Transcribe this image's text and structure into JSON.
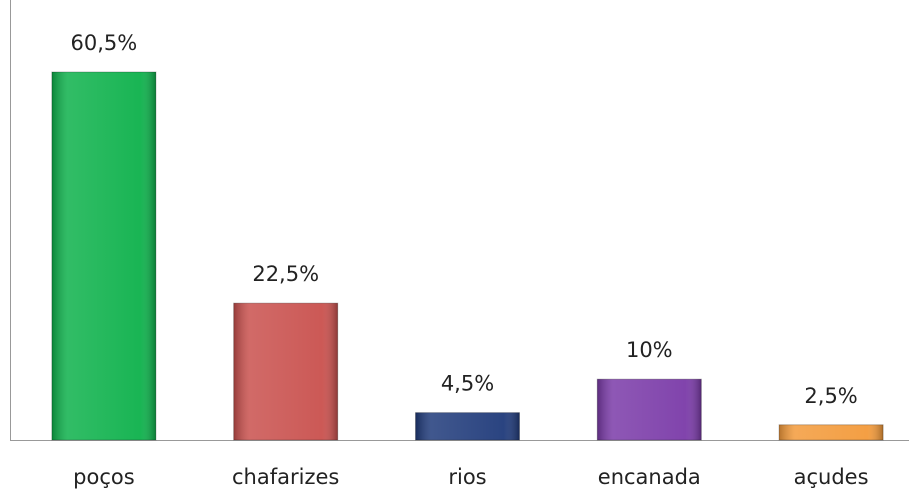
{
  "chart_data": {
    "type": "bar",
    "categories": [
      "poços",
      "chafarizes",
      "rios",
      "encanada",
      "açudes"
    ],
    "values": [
      60.5,
      22.5,
      4.5,
      10,
      2.5
    ],
    "value_labels": [
      "60,5%",
      "22,5%",
      "4,5%",
      "10%",
      "2,5%"
    ],
    "colors": [
      "#0db14b",
      "#c9504d",
      "#1f3a7a",
      "#7a3aa8",
      "#f39a3a"
    ]
  }
}
